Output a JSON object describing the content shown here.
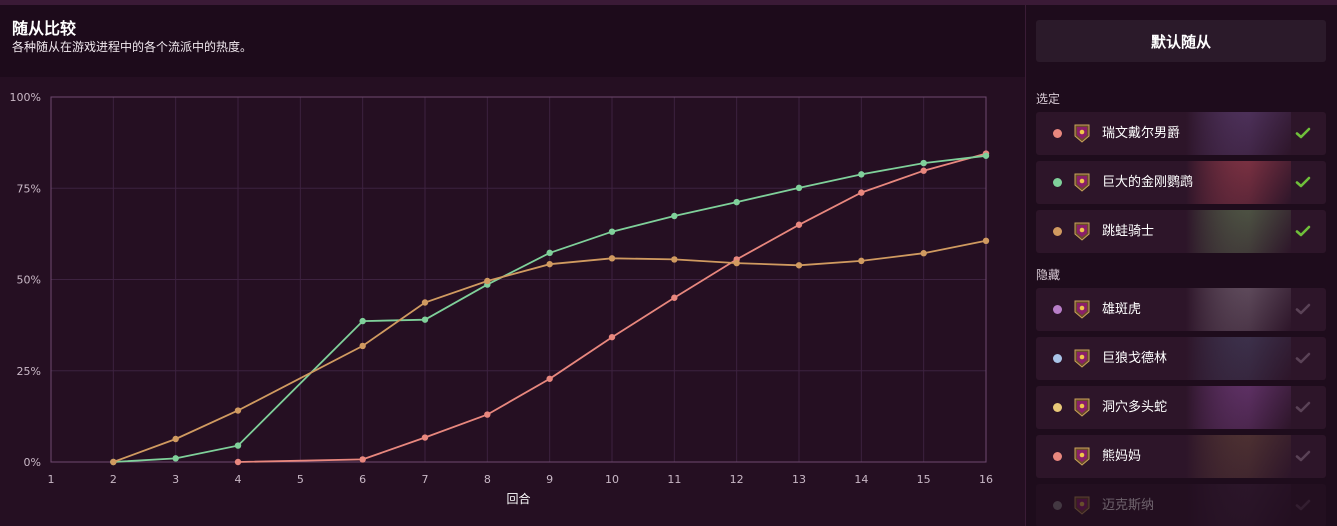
{
  "header": {
    "title": "随从比较",
    "subtitle": "各种随从在游戏进程中的各个流派中的热度。"
  },
  "sidebar": {
    "default_button": "默认随从",
    "selected_label": "选定",
    "hidden_label": "隐藏",
    "selected": [
      {
        "name": "瑞文戴尔男爵",
        "color": "#e8877e",
        "checked": true,
        "art_color": "#6a4a86"
      },
      {
        "name": "巨大的金刚鹦鹉",
        "color": "#7fd09a",
        "checked": true,
        "art_color": "#c04a58"
      },
      {
        "name": "跳蛙骑士",
        "color": "#d09a60",
        "checked": true,
        "art_color": "#6a8a5a"
      }
    ],
    "hidden": [
      {
        "name": "雄斑虎",
        "color": "#b87ec8",
        "checked": false,
        "art_color": "#8a7a88"
      },
      {
        "name": "巨狼戈德林",
        "color": "#a9c4e8",
        "checked": false,
        "art_color": "#4a4a6a"
      },
      {
        "name": "洞穴多头蛇",
        "color": "#e8c878",
        "checked": false,
        "art_color": "#8a4a9a"
      },
      {
        "name": "熊妈妈",
        "color": "#e8877e",
        "checked": false,
        "art_color": "#6a4a3a"
      },
      {
        "name": "迈克斯纳",
        "color": "#8a8a8a",
        "checked": false,
        "art_color": "#5a3a5a"
      }
    ]
  },
  "chart_data": {
    "type": "line",
    "xlabel": "回合",
    "ylabel": "",
    "x_ticks": [
      1,
      2,
      3,
      4,
      5,
      6,
      7,
      8,
      9,
      10,
      11,
      12,
      13,
      14,
      15,
      16
    ],
    "y_ticks": [
      "0%",
      "25%",
      "50%",
      "75%",
      "100%"
    ],
    "xlim": [
      1,
      16
    ],
    "ylim": [
      0,
      100
    ],
    "grid": true,
    "series": [
      {
        "name": "瑞文戴尔男爵",
        "color": "#e8877e",
        "points": [
          [
            4,
            0
          ],
          [
            6,
            0.7
          ],
          [
            7,
            6.7
          ],
          [
            8,
            13
          ],
          [
            9,
            22.8
          ],
          [
            10,
            34.2
          ],
          [
            11,
            45
          ],
          [
            12,
            55.5
          ],
          [
            13,
            65
          ],
          [
            14,
            73.8
          ],
          [
            15,
            79.8
          ],
          [
            16,
            84.5
          ]
        ]
      },
      {
        "name": "巨大的金刚鹦鹉",
        "color": "#7fd09a",
        "points": [
          [
            2,
            0
          ],
          [
            3,
            1
          ],
          [
            4,
            4.5
          ],
          [
            6,
            38.6
          ],
          [
            7,
            39
          ],
          [
            8,
            48.6
          ],
          [
            9,
            57.3
          ],
          [
            10,
            63.1
          ],
          [
            11,
            67.4
          ],
          [
            12,
            71.2
          ],
          [
            13,
            75.1
          ],
          [
            14,
            78.8
          ],
          [
            15,
            81.9
          ],
          [
            16,
            83.9
          ]
        ]
      },
      {
        "name": "跳蛙骑士",
        "color": "#d09a60",
        "points": [
          [
            2,
            0
          ],
          [
            3,
            6.3
          ],
          [
            4,
            14.1
          ],
          [
            6,
            31.8
          ],
          [
            7,
            43.7
          ],
          [
            8,
            49.6
          ],
          [
            9,
            54.2
          ],
          [
            10,
            55.8
          ],
          [
            11,
            55.5
          ],
          [
            12,
            54.5
          ],
          [
            13,
            53.9
          ],
          [
            14,
            55.1
          ],
          [
            15,
            57.2
          ],
          [
            16,
            60.6
          ]
        ]
      }
    ]
  }
}
